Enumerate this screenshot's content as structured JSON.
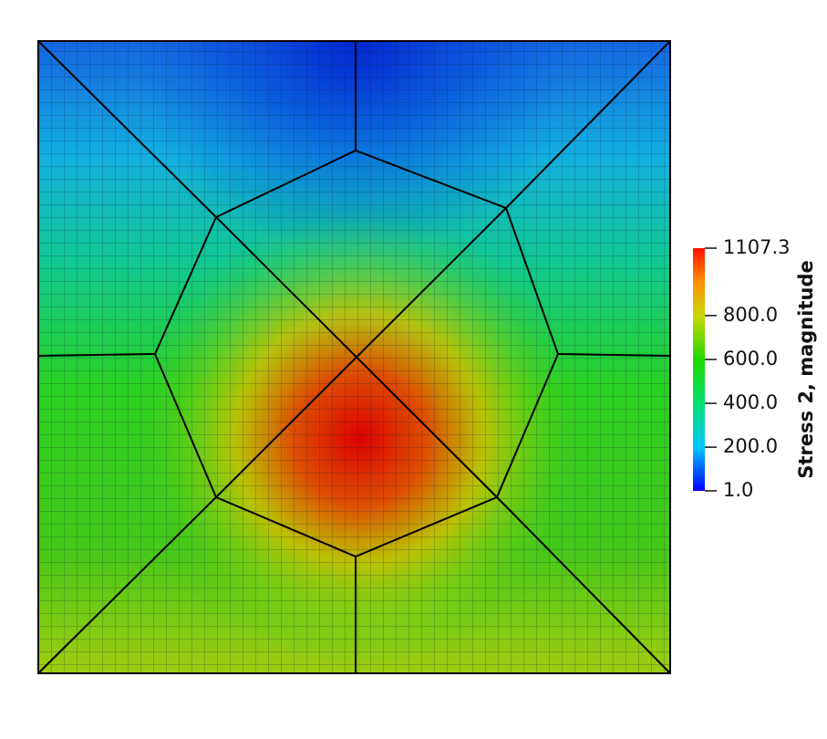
{
  "colorbar": {
    "title": "Stress 2, magnitude",
    "clim": [
      1,
      1107.3
    ],
    "ticks": [
      {
        "value": 1,
        "label": "1.0"
      },
      {
        "value": 200,
        "label": "200.0"
      },
      {
        "value": 400,
        "label": "400.0"
      },
      {
        "value": 600,
        "label": "600.0"
      },
      {
        "value": 800,
        "label": "800.0"
      },
      1107.3
    ]
  }
}
